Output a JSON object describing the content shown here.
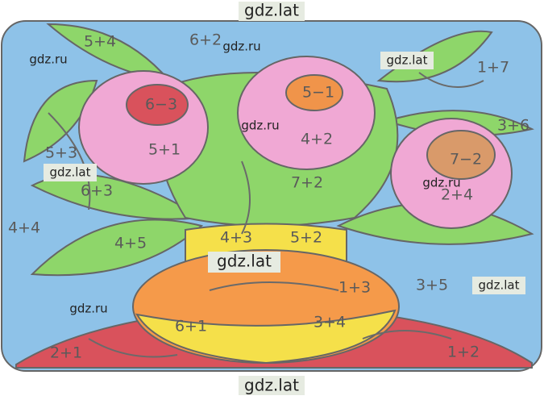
{
  "watermarks": [
    "gdz.lat",
    "gdz.ru",
    "gdz.ru",
    "gdz.lat",
    "gdz.ru",
    "gdz.lat",
    "gdz.ru",
    "gdz.lat",
    "gdz.lat",
    "gdz.ru",
    "gdz.lat"
  ],
  "expressions": [
    "5+4",
    "6+2",
    "1+7",
    "6−3",
    "5−1",
    "4+2",
    "5+1",
    "3+6",
    "5+3",
    "6+3",
    "7+2",
    "7−2",
    "2+4",
    "4+4",
    "4+5",
    "4+3",
    "5+2",
    "1+3",
    "3+5",
    "6+1",
    "3+4",
    "2+1",
    "1+2"
  ]
}
